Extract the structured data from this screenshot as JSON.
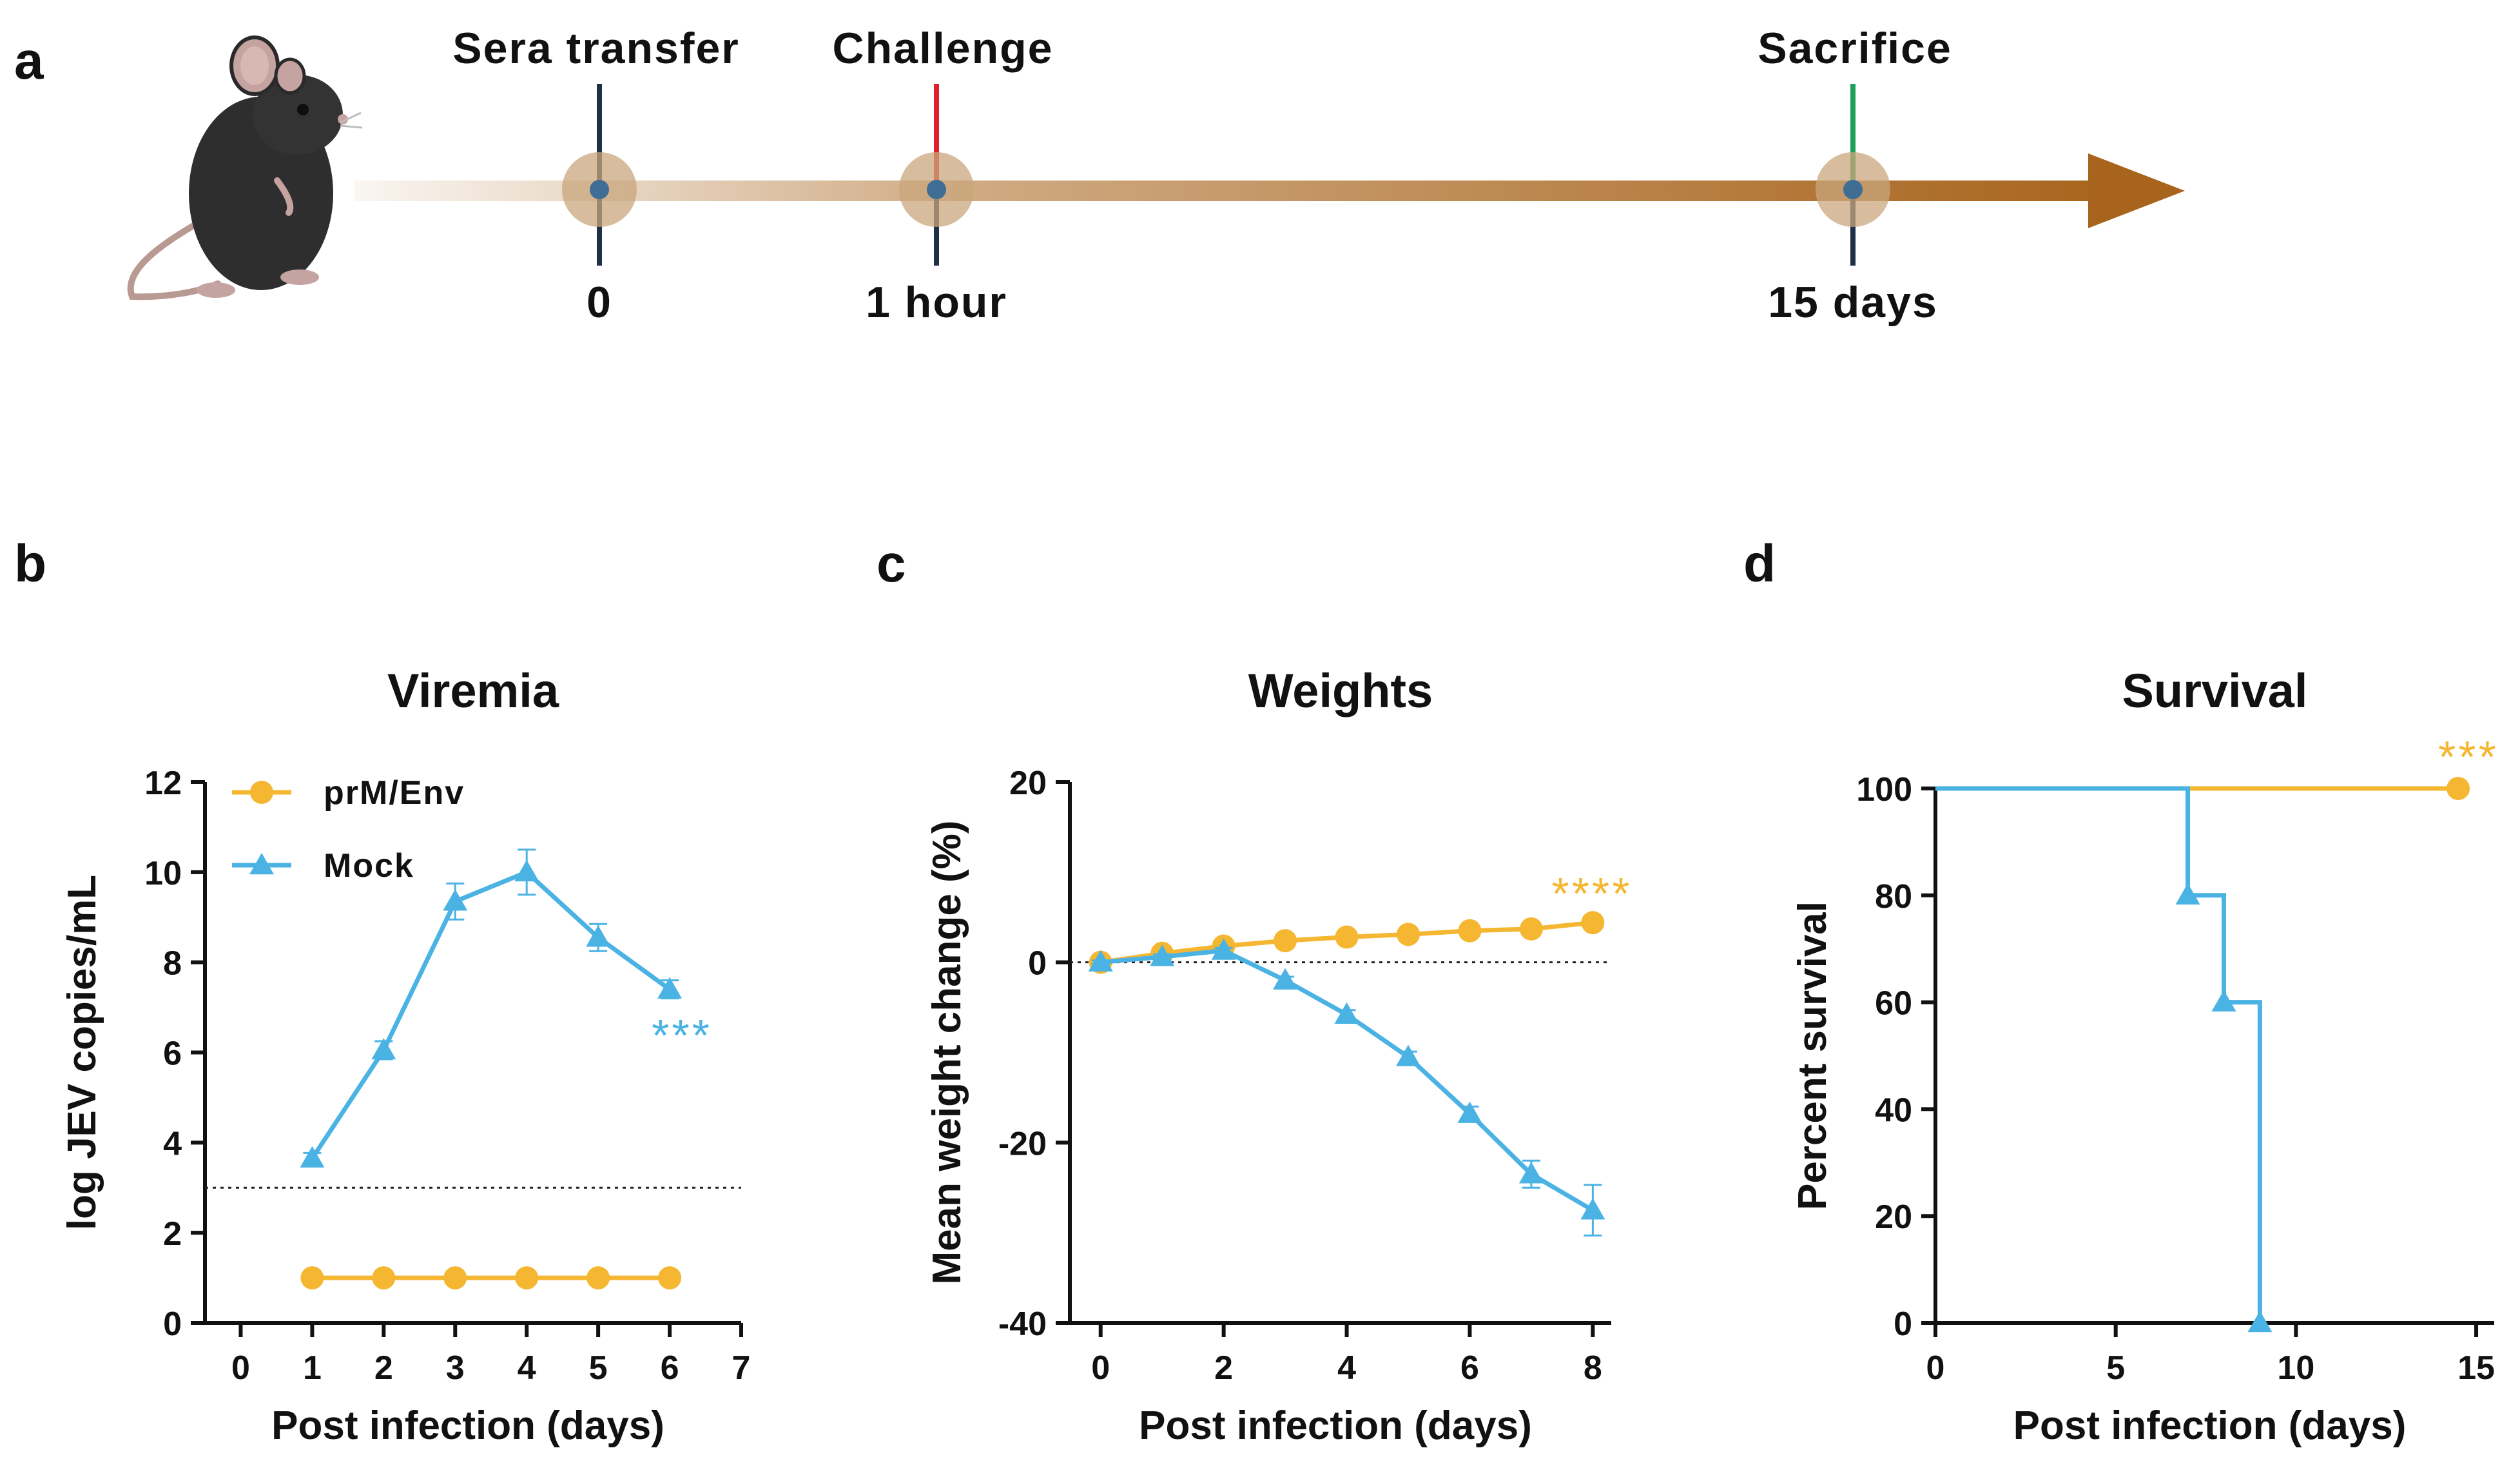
{
  "panels": {
    "a": "a",
    "b": "b",
    "c": "c",
    "d": "d"
  },
  "colors": {
    "prm_env": "#F5B731",
    "mock": "#4BB3E3",
    "arrow": "#A8641C",
    "sera_marker": "#1F2F48",
    "challenge_marker": "#E0202A",
    "sacrifice_marker": "#1FA05A",
    "dot": "#3F6D94"
  },
  "timeline": {
    "events": [
      {
        "name": "Sera transfer",
        "time": "0",
        "marker": "sera_marker"
      },
      {
        "name": "Challenge",
        "time": "1 hour",
        "marker": "challenge_marker"
      },
      {
        "name": "Sacrifice",
        "time": "15 days",
        "marker": "sacrifice_marker"
      }
    ]
  },
  "chart_data": [
    {
      "id": "b",
      "type": "line",
      "title": "Viremia",
      "xlabel": "Post infection (days)",
      "ylabel": "log JEV copies/mL",
      "xlim": [
        -0.5,
        7
      ],
      "ylim": [
        0,
        12
      ],
      "xticks": [
        0,
        1,
        2,
        3,
        4,
        5,
        6,
        7
      ],
      "yticks": [
        0,
        2,
        4,
        6,
        8,
        10,
        12
      ],
      "reference_line": 3,
      "legend": {
        "position": "top-left",
        "entries": [
          "prM/Env",
          "Mock"
        ]
      },
      "series": [
        {
          "name": "prM/Env",
          "marker": "circle",
          "x": [
            1,
            2,
            3,
            4,
            5,
            6
          ],
          "values": [
            1,
            1,
            1,
            1,
            1,
            1
          ],
          "err": [
            0,
            0,
            0,
            0,
            0,
            0
          ]
        },
        {
          "name": "Mock",
          "marker": "triangle",
          "x": [
            1,
            2,
            3,
            4,
            5,
            6
          ],
          "values": [
            3.65,
            6.05,
            9.35,
            10.0,
            8.55,
            7.4
          ],
          "err": [
            0.12,
            0.2,
            0.4,
            0.5,
            0.3,
            0.2
          ]
        }
      ],
      "annotation": {
        "text": "***",
        "series": "Mock"
      }
    },
    {
      "id": "c",
      "type": "line",
      "title": "Weights",
      "xlabel": "Post infection (days)",
      "ylabel": "Mean weight change (%)",
      "xlim": [
        -0.5,
        8.3
      ],
      "ylim": [
        -40,
        20
      ],
      "xticks": [
        0,
        2,
        4,
        6,
        8
      ],
      "yticks": [
        -40,
        -20,
        0,
        20
      ],
      "reference_line": 0,
      "series": [
        {
          "name": "prM/Env",
          "marker": "circle",
          "x": [
            0,
            1,
            2,
            3,
            4,
            5,
            6,
            7,
            8
          ],
          "values": [
            0,
            1.0,
            1.8,
            2.4,
            2.8,
            3.1,
            3.5,
            3.7,
            4.4
          ],
          "err": [
            0,
            0,
            0,
            0,
            0,
            0,
            0,
            0,
            0.6
          ]
        },
        {
          "name": "Mock",
          "marker": "triangle",
          "x": [
            0,
            1,
            2,
            3,
            4,
            5,
            6,
            7,
            8
          ],
          "values": [
            0,
            0.6,
            1.3,
            -2.0,
            -5.8,
            -10.5,
            -16.8,
            -23.5,
            -27.5
          ],
          "err": [
            0.2,
            0.3,
            0.3,
            0.4,
            0.5,
            0.6,
            0.8,
            1.5,
            2.8
          ]
        }
      ],
      "annotation": {
        "text": "****",
        "series": "prM/Env"
      }
    },
    {
      "id": "d",
      "type": "line",
      "title": "Survival",
      "xlabel": "Post infection (days)",
      "ylabel": "Percent survival",
      "xlim": [
        0,
        15.5
      ],
      "ylim": [
        0,
        100
      ],
      "xticks": [
        0,
        5,
        10,
        15
      ],
      "yticks": [
        0,
        20,
        40,
        60,
        80,
        100
      ],
      "series": [
        {
          "name": "prM/Env",
          "marker": "circle",
          "steps": [
            [
              0,
              100
            ],
            [
              14.5,
              100
            ]
          ],
          "markers": [
            [
              14.5,
              100
            ]
          ]
        },
        {
          "name": "Mock",
          "marker": "triangle",
          "steps": [
            [
              0,
              100
            ],
            [
              7,
              100
            ],
            [
              7,
              80
            ],
            [
              8,
              80
            ],
            [
              8,
              60
            ],
            [
              9,
              60
            ],
            [
              9,
              0
            ]
          ],
          "markers": [
            [
              7,
              80
            ],
            [
              8,
              60
            ],
            [
              9,
              0
            ]
          ]
        }
      ],
      "annotation": {
        "text": "***",
        "series": "prM/Env"
      }
    }
  ]
}
